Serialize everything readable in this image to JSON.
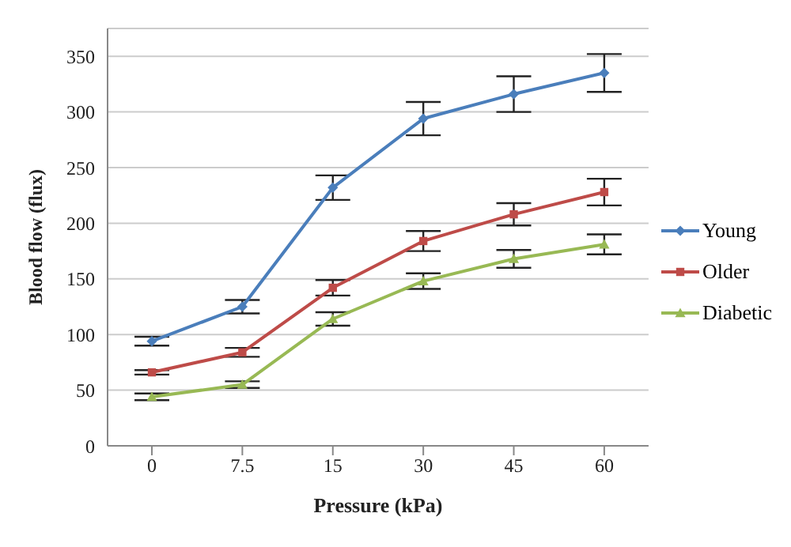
{
  "chart_data": {
    "type": "line",
    "xlabel": "Pressure (kPa)",
    "ylabel": "Blood flow (flux)",
    "categories": [
      "0",
      "7.5",
      "15",
      "30",
      "45",
      "60"
    ],
    "series": [
      {
        "name": "Young",
        "color": "#4a7ebb",
        "marker": "diamond",
        "values": [
          94,
          125,
          232,
          294,
          316,
          335
        ],
        "errors": [
          4,
          6,
          11,
          15,
          16,
          17
        ]
      },
      {
        "name": "Older",
        "color": "#be4b48",
        "marker": "square",
        "values": [
          66,
          84,
          142,
          184,
          208,
          228
        ],
        "errors": [
          2,
          4,
          7,
          9,
          10,
          12
        ]
      },
      {
        "name": "Diabetic",
        "color": "#98b954",
        "marker": "triangle",
        "values": [
          44,
          55,
          114,
          148,
          168,
          181
        ],
        "errors": [
          3,
          3,
          6,
          7,
          8,
          9
        ]
      }
    ],
    "ylim": [
      0,
      375
    ],
    "yticks": [
      0,
      50,
      100,
      150,
      200,
      250,
      300,
      350
    ],
    "grid": "y",
    "legend": "right"
  }
}
